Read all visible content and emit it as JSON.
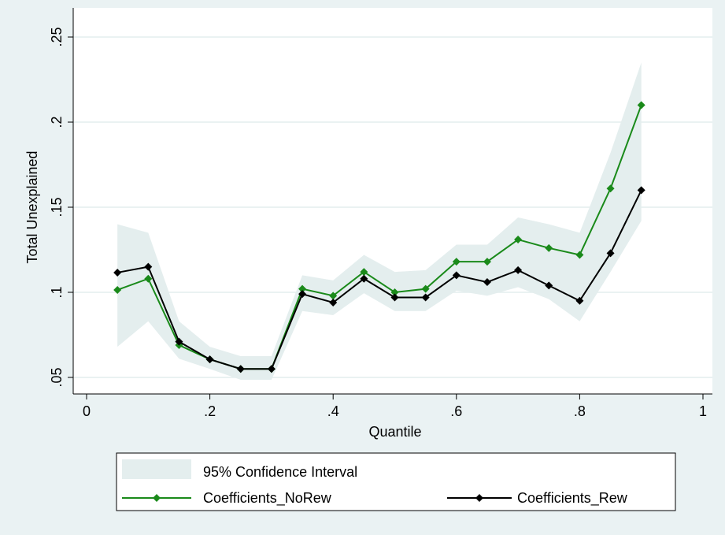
{
  "chart_data": {
    "type": "line",
    "xlabel": "Quantile",
    "ylabel": "Total Unexplained",
    "x": [
      0.05,
      0.1,
      0.15,
      0.2,
      0.25,
      0.3,
      0.35,
      0.4,
      0.45,
      0.5,
      0.55,
      0.6,
      0.65,
      0.7,
      0.75,
      0.8,
      0.85,
      0.9
    ],
    "band": {
      "name": "95% Confidence Interval",
      "color": "#e4eeee",
      "upper": [
        0.14,
        0.135,
        0.083,
        0.068,
        0.0625,
        0.0625,
        0.11,
        0.107,
        0.122,
        0.112,
        0.113,
        0.128,
        0.128,
        0.144,
        0.14,
        0.135,
        0.182,
        0.235
      ],
      "lower": [
        0.068,
        0.083,
        0.061,
        0.055,
        0.0486,
        0.0486,
        0.089,
        0.0866,
        0.0995,
        0.089,
        0.089,
        0.101,
        0.098,
        0.103,
        0.096,
        0.083,
        0.112,
        0.142
      ]
    },
    "series": [
      {
        "name": "Coefficients_NoRew",
        "color": "#1a8a1a",
        "values": [
          0.1014,
          0.108,
          0.069,
          0.0606,
          0.055,
          0.055,
          0.102,
          0.098,
          0.112,
          0.1,
          0.102,
          0.118,
          0.118,
          0.131,
          0.126,
          0.122,
          0.161,
          0.21
        ]
      },
      {
        "name": "Coefficients_Rew",
        "color": "#000000",
        "values": [
          0.1116,
          0.115,
          0.071,
          0.0606,
          0.055,
          0.055,
          0.099,
          0.094,
          0.108,
          0.097,
          0.097,
          0.11,
          0.106,
          0.113,
          0.104,
          0.095,
          0.123,
          0.16
        ]
      }
    ],
    "xlim": [
      0,
      1
    ],
    "xticks": [
      0,
      {
        "value": 0.2,
        "label": ".2"
      },
      {
        "value": 0.4,
        "label": ".4"
      },
      {
        "value": 0.6,
        "label": ".6"
      },
      {
        "value": 0.8,
        "label": ".8"
      },
      1
    ],
    "ylim": [
      0.05,
      0.25
    ],
    "yticks": [
      {
        "value": 0.05,
        "label": ".05"
      },
      {
        "value": 0.1,
        "label": ".1"
      },
      {
        "value": 0.15,
        "label": ".15"
      },
      {
        "value": 0.2,
        "label": ".2"
      },
      {
        "value": 0.25,
        "label": ".25"
      }
    ],
    "grid": true
  }
}
